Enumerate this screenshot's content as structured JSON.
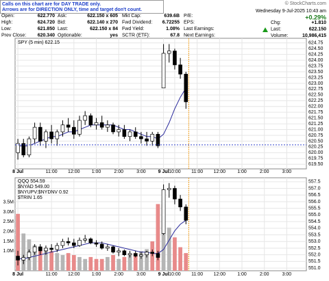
{
  "header": {
    "note": [
      "Calls on this chart are for DAY TRADE only.",
      "Arrows are for DIRECTION ONLY, time and target don't count."
    ],
    "copyright": "© StockCharts.com",
    "datetime": "Wednesday 9-Jul-2025 10:43 am",
    "columns": [
      [
        {
          "label": "Open:",
          "value": "622.770"
        },
        {
          "label": "High:",
          "value": "624.720"
        },
        {
          "label": "Low:",
          "value": "621.850"
        },
        {
          "label": "Prev Close:",
          "value": "620.340"
        }
      ],
      [
        {
          "label": "Ask:",
          "value": "622.150 x 605"
        },
        {
          "label": "Bid:",
          "value": "622.140 x 270"
        },
        {
          "label": "Last:",
          "value": "622.150 x 84"
        },
        {
          "label": "Optionable:",
          "value": "yes"
        }
      ],
      [
        {
          "label": "Mkt Cap:",
          "value": "639.6B"
        },
        {
          "label": "Fwd Dividend:",
          "value": "6.72255"
        },
        {
          "label": "Fwd Yield:",
          "value": "1.08%"
        },
        {
          "label": "SCTR (ETF):",
          "value": "67.8"
        }
      ],
      [
        {
          "label": "P/E:"
        },
        {
          "label": "EPS:"
        },
        {
          "label": "Last Earnings:"
        },
        {
          "label": "Next Earnings:"
        }
      ]
    ],
    "change_pct": "+0.29%",
    "right": [
      {
        "label": "Chg:",
        "value": "+1.810"
      },
      {
        "label": "Last:",
        "value": "622.150"
      },
      {
        "label": "Volume:",
        "value": "10,986,415"
      }
    ]
  },
  "chart_data": [
    {
      "type": "candlestick",
      "title": "SPY (5 min) 622.15",
      "categories": [
        "8 Jul",
        null,
        null,
        null,
        null,
        null,
        "11:00",
        null,
        null,
        null,
        "12:00",
        null,
        null,
        null,
        "1:00",
        null,
        null,
        null,
        "2:00",
        null,
        null,
        null,
        "3:00",
        null,
        null,
        null,
        "9 Jul",
        null,
        "10:00",
        null,
        null,
        null,
        "11:00",
        null,
        null,
        null,
        "12:00",
        null,
        null,
        null,
        "1:00",
        null,
        null,
        null,
        "2:00",
        null,
        null,
        null,
        "3:00",
        null,
        null,
        null
      ],
      "open": [
        620.0,
        620.4,
        619.9,
        620.6,
        621.1,
        620.5,
        620.9,
        620.6,
        620.9,
        621.2,
        621.1,
        620.8,
        621.4,
        621.6,
        621.2,
        621.3,
        621.1,
        621.2,
        620.9,
        621.0,
        620.7,
        620.9,
        620.7,
        620.6,
        620.5,
        620.8,
        622.8,
        624.3,
        624.4,
        623.8,
        623.4,
        null,
        null,
        null,
        null,
        null,
        null,
        null,
        null,
        null,
        null,
        null,
        null,
        null,
        null,
        null,
        null,
        null,
        null,
        null,
        null,
        null
      ],
      "high": [
        620.6,
        620.6,
        620.7,
        621.3,
        621.3,
        621.0,
        621.2,
        621.0,
        621.4,
        621.5,
        621.4,
        621.6,
        621.8,
        621.7,
        621.5,
        621.6,
        621.4,
        621.3,
        621.2,
        621.2,
        621.0,
        621.1,
        620.9,
        620.9,
        620.9,
        620.9,
        624.7,
        624.7,
        624.5,
        624.1,
        623.5,
        null,
        null,
        null,
        null,
        null,
        null,
        null,
        null,
        null,
        null,
        null,
        null,
        null,
        null,
        null,
        null,
        null,
        null,
        null,
        null,
        null
      ],
      "low": [
        619.7,
        619.8,
        619.8,
        620.4,
        620.3,
        620.2,
        620.4,
        620.3,
        620.7,
        620.9,
        620.6,
        620.7,
        621.2,
        621.1,
        621.0,
        621.0,
        620.9,
        620.8,
        620.7,
        620.6,
        620.5,
        620.6,
        620.4,
        620.3,
        620.3,
        620.2,
        622.8,
        623.9,
        623.6,
        623.2,
        621.9,
        null,
        null,
        null,
        null,
        null,
        null,
        null,
        null,
        null,
        null,
        null,
        null,
        null,
        null,
        null,
        null,
        null,
        null,
        null,
        null,
        null
      ],
      "close": [
        620.4,
        619.9,
        620.6,
        621.1,
        620.5,
        620.9,
        620.6,
        620.9,
        621.2,
        621.1,
        620.8,
        621.4,
        621.6,
        621.2,
        621.3,
        621.1,
        621.2,
        620.9,
        621.0,
        620.7,
        620.9,
        620.7,
        620.6,
        620.5,
        620.8,
        620.3,
        624.3,
        624.4,
        623.8,
        623.4,
        622.2,
        null,
        null,
        null,
        null,
        null,
        null,
        null,
        null,
        null,
        null,
        null,
        null,
        null,
        null,
        null,
        null,
        null,
        null,
        null,
        null,
        null
      ],
      "ma": {
        "color": "#2b2b9c",
        "values": [
          620.3,
          620.3,
          620.3,
          620.4,
          620.5,
          620.6,
          620.7,
          620.7,
          620.8,
          620.9,
          620.9,
          621.0,
          621.1,
          621.2,
          621.2,
          621.2,
          621.2,
          621.2,
          621.1,
          621.0,
          621.0,
          620.9,
          620.8,
          620.7,
          620.7,
          620.6,
          620.8,
          621.3,
          621.9,
          622.4,
          622.8,
          null,
          null,
          null,
          null,
          null,
          null,
          null,
          null,
          null,
          null,
          null,
          null,
          null,
          null,
          null,
          null,
          null,
          null,
          null,
          null,
          null
        ]
      },
      "ylim": [
        619.3,
        624.95
      ],
      "yticks": [
        {
          "value": 619.5,
          "label": "619.50"
        },
        619.75,
        {
          "value": 620,
          "label": "620.00"
        },
        620.25,
        {
          "value": 620.5,
          "label": "620.50"
        },
        620.75,
        {
          "value": 621,
          "label": "621.00"
        },
        621.25,
        {
          "value": 621.5,
          "label": "621.50"
        },
        621.75,
        {
          "value": 622,
          "label": "622.00"
        },
        622.25,
        {
          "value": 622.5,
          "label": "622.50"
        },
        622.75,
        {
          "value": 623,
          "label": "623.00"
        },
        623.25,
        {
          "value": 623.5,
          "label": "623.50"
        },
        623.75,
        {
          "value": 624,
          "label": "624.00"
        },
        624.25,
        {
          "value": 624.5,
          "label": "624.50"
        },
        624.75
      ],
      "grid": true
    },
    {
      "type": "candlestick",
      "legend": [
        "QQQ 554.59",
        "$NYAD 549.00",
        "$NYUPV:$NYDNV 0.92",
        "$TRIN 1.65"
      ],
      "categories": [
        "8 Jul",
        null,
        null,
        null,
        null,
        null,
        "11:00",
        null,
        null,
        null,
        "12:00",
        null,
        null,
        null,
        "1:00",
        null,
        null,
        null,
        "2:00",
        null,
        null,
        null,
        "3:00",
        null,
        null,
        null,
        "9 Jul",
        null,
        "10:00",
        null,
        null,
        null,
        "11:00",
        null,
        null,
        null,
        "12:00",
        null,
        null,
        null,
        "1:00",
        null,
        null,
        null,
        "2:00",
        null,
        null,
        null,
        "3:00",
        null,
        null,
        null
      ],
      "open": [
        551.9,
        551.6,
        551.8,
        552.2,
        552.6,
        552.3,
        552.5,
        552.4,
        552.7,
        553.0,
        552.9,
        552.7,
        553.1,
        553.2,
        552.9,
        552.8,
        552.5,
        552.6,
        552.2,
        552.3,
        552.0,
        552.1,
        551.9,
        552.0,
        552.2,
        552.1,
        553.6,
        556.9,
        557.0,
        556.2,
        555.6,
        null,
        null,
        null,
        null,
        null,
        null,
        null,
        null,
        null,
        null,
        null,
        null,
        null,
        null,
        null,
        null,
        null,
        null,
        null,
        null,
        null
      ],
      "high": [
        552.3,
        552.0,
        552.4,
        552.8,
        552.8,
        552.7,
        552.8,
        552.9,
        553.2,
        553.3,
        553.2,
        553.3,
        553.5,
        553.3,
        553.1,
        553.0,
        552.8,
        552.7,
        552.5,
        552.4,
        552.3,
        552.3,
        552.2,
        552.3,
        552.4,
        552.3,
        557.3,
        557.4,
        557.2,
        556.5,
        555.8,
        null,
        null,
        null,
        null,
        null,
        null,
        null,
        null,
        null,
        null,
        null,
        null,
        null,
        null,
        null,
        null,
        null,
        null,
        null,
        null,
        null
      ],
      "low": [
        551.2,
        551.3,
        551.6,
        552.0,
        552.0,
        552.0,
        552.2,
        552.2,
        552.5,
        552.7,
        552.5,
        552.6,
        552.9,
        552.8,
        552.6,
        552.4,
        552.3,
        552.1,
        551.9,
        551.9,
        551.8,
        551.8,
        551.7,
        551.8,
        551.9,
        551.6,
        553.5,
        556.3,
        555.8,
        555.3,
        554.3,
        null,
        null,
        null,
        null,
        null,
        null,
        null,
        null,
        null,
        null,
        null,
        null,
        null,
        null,
        null,
        null,
        null,
        null,
        null,
        null,
        null
      ],
      "close": [
        551.6,
        551.8,
        552.2,
        552.6,
        552.3,
        552.5,
        552.4,
        552.7,
        553.0,
        552.9,
        552.7,
        553.1,
        553.2,
        552.9,
        552.8,
        552.5,
        552.6,
        552.2,
        552.3,
        552.0,
        552.1,
        551.9,
        552.0,
        552.2,
        552.1,
        551.8,
        556.9,
        557.0,
        556.2,
        555.6,
        554.6,
        null,
        null,
        null,
        null,
        null,
        null,
        null,
        null,
        null,
        null,
        null,
        null,
        null,
        null,
        null,
        null,
        null,
        null,
        null,
        null,
        null
      ],
      "ma": {
        "color": "#2b2b9c",
        "values": [
          551.7,
          551.7,
          551.8,
          551.9,
          552.0,
          552.1,
          552.2,
          552.3,
          552.4,
          552.5,
          552.6,
          552.7,
          552.8,
          552.9,
          552.9,
          552.9,
          552.8,
          552.7,
          552.6,
          552.5,
          552.4,
          552.3,
          552.2,
          552.2,
          552.1,
          552.1,
          552.4,
          553.1,
          553.8,
          554.3,
          554.6,
          null,
          null,
          null,
          null,
          null,
          null,
          null,
          null,
          null,
          null,
          null,
          null,
          null,
          null,
          null,
          null,
          null,
          null,
          null,
          null,
          null
        ]
      },
      "ylim": [
        550.8,
        557.8
      ],
      "yticks": [
        {
          "value": 551,
          "label": "551.0"
        },
        551.5,
        {
          "value": 552,
          "label": "552.0"
        },
        552.5,
        {
          "value": 553,
          "label": "553.0"
        },
        553.5,
        {
          "value": 554,
          "label": "554.0"
        },
        554.5,
        {
          "value": 555,
          "label": "555.0"
        },
        555.5,
        {
          "value": 556,
          "label": "556.0"
        },
        556.5,
        {
          "value": 557,
          "label": "557.0"
        },
        557.5
      ],
      "volume": {
        "up_color": "#b5b5b5",
        "down_color": "#e88a8a",
        "values": [
          2900000,
          1900000,
          1600000,
          1300000,
          1200000,
          1100000,
          1000000,
          900000,
          800000,
          900000,
          800000,
          700000,
          600000,
          700000,
          600000,
          600000,
          700000,
          800000,
          600000,
          700000,
          800000,
          900000,
          1000000,
          1100000,
          1500000,
          3400000,
          3400000,
          2200000,
          1700000,
          1200000,
          900000,
          null,
          null,
          null,
          null,
          null,
          null,
          null,
          null,
          null,
          null,
          null,
          null,
          null,
          null,
          null,
          null,
          null,
          null,
          null,
          null,
          null
        ],
        "ylim": [
          0,
          4740000
        ],
        "yticks": [
          {
            "value": 1000000,
            "label": "1.0M"
          },
          {
            "value": 1500000,
            "label": "1.5M"
          },
          {
            "value": 2000000,
            "label": "2.0M"
          },
          {
            "value": 2500000,
            "label": "2.5M"
          },
          {
            "value": 3000000,
            "label": "3.0M"
          },
          {
            "value": 3500000,
            "label": "3.5M"
          }
        ]
      },
      "grid": true
    }
  ]
}
